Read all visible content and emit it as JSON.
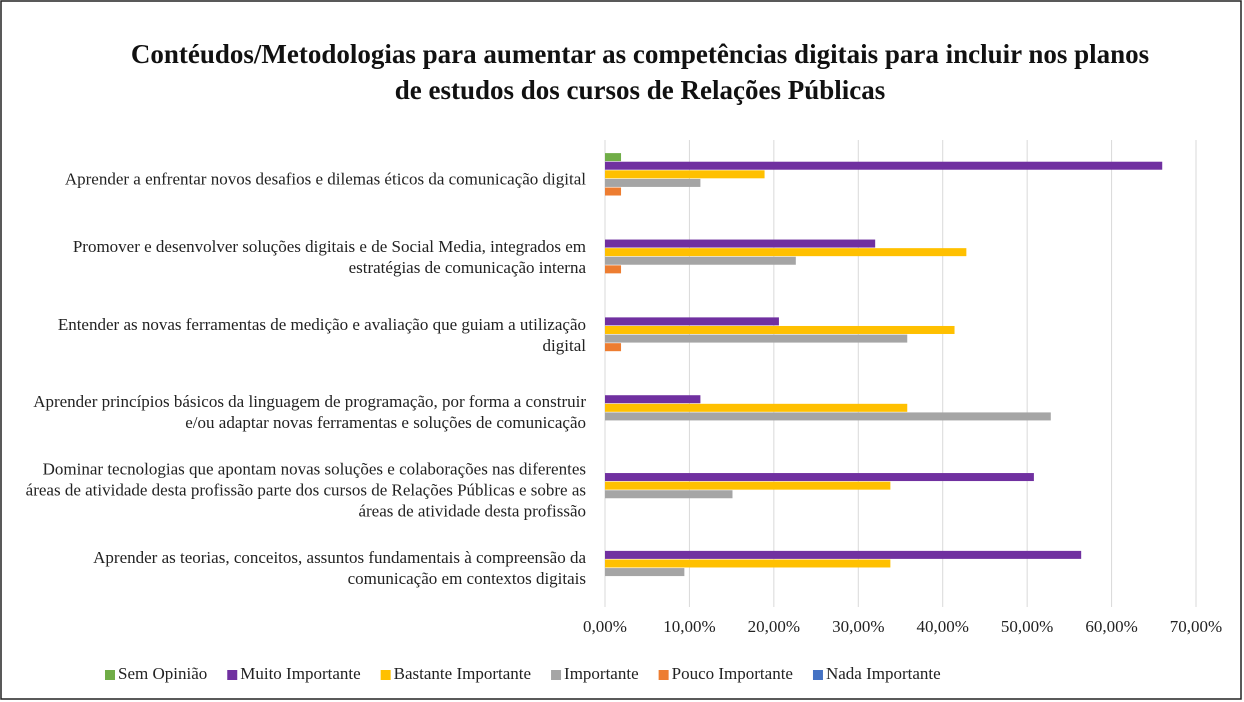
{
  "chart_data": {
    "type": "hbar",
    "title": "Contéudos/Metodologias para aumentar as competências digitais para incluir nos planos de estudos dos cursos de Relações Públicas",
    "categories": [
      "Aprender a enfrentar novos desafios e dilemas éticos da comunicação digital",
      "Promover e desenvolver soluções digitais e de Social Media, integrados em estratégias de comunicação interna",
      "Entender as novas ferramentas de medição e avaliação que guiam a utilização digital",
      "Aprender princípios básicos da linguagem de programação, por forma a construir e/ou adaptar novas ferramentas e soluções de comunicação",
      "Dominar tecnologias que apontam novas soluções e colaborações nas diferentes áreas de atividade desta profissão parte dos cursos de Relações Públicas e sobre as áreas de atividade desta profissão",
      "Aprender as teorias, conceitos,  assuntos fundamentais à compreensão da comunicação em contextos digitais"
    ],
    "series": [
      {
        "name": "Sem Opinião",
        "color": "#70ad47",
        "values": [
          1.9,
          0,
          0,
          0,
          0,
          0
        ]
      },
      {
        "name": "Muito Importante",
        "color": "#7030a0",
        "values": [
          66.0,
          32.0,
          20.6,
          11.3,
          50.8,
          56.4
        ]
      },
      {
        "name": "Bastante Importante",
        "color": "#ffc000",
        "values": [
          18.9,
          42.8,
          41.4,
          35.8,
          33.8,
          33.8
        ]
      },
      {
        "name": "Importante",
        "color": "#a5a5a5",
        "values": [
          11.3,
          22.6,
          35.8,
          52.8,
          15.1,
          9.4
        ]
      },
      {
        "name": "Pouco Importante",
        "color": "#ed7d31",
        "values": [
          1.9,
          1.9,
          1.9,
          0,
          0,
          0
        ]
      },
      {
        "name": "Nada Importante",
        "color": "#4472c4",
        "values": [
          0,
          0,
          0,
          0,
          0,
          0
        ]
      }
    ],
    "xlim": [
      0,
      70
    ],
    "xticks": [
      {
        "value": 0,
        "label": "0,00%"
      },
      {
        "value": 10,
        "label": "10,00%"
      },
      {
        "value": 20,
        "label": "20,00%"
      },
      {
        "value": 30,
        "label": "30,00%"
      },
      {
        "value": 40,
        "label": "40,00%"
      },
      {
        "value": 50,
        "label": "50,00%"
      },
      {
        "value": 60,
        "label": "60,00%"
      },
      {
        "value": 70,
        "label": "70,00%"
      }
    ],
    "grid": true,
    "legend": "bottom"
  }
}
